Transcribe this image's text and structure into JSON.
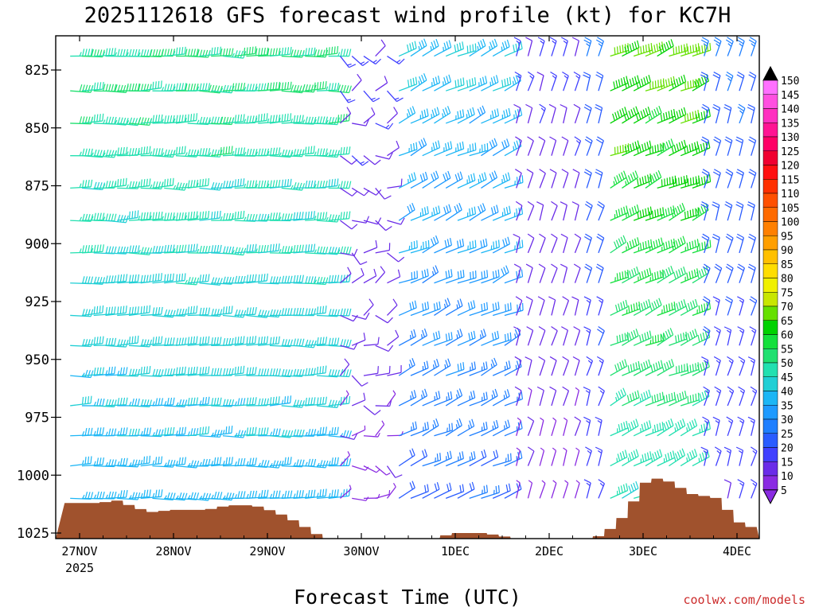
{
  "title": "2025112618 GFS forecast wind profile (kt) for KC7H",
  "xlabel": "Forecast Time (UTC)",
  "credit": "coolwx.com/models",
  "colors": {
    "terrain": "#a0522d",
    "terrain_edge": "#000000"
  },
  "chart_data": {
    "type": "wind_barb_profile",
    "xlabel": "Forecast Time (UTC)",
    "ylabel": "",
    "x_ticks": [
      {
        "label": "27NOV",
        "sub": "2025",
        "day": 0.0
      },
      {
        "label": "28NOV",
        "sub": "",
        "day": 1.0
      },
      {
        "label": "29NOV",
        "sub": "",
        "day": 2.0
      },
      {
        "label": "30NOV",
        "sub": "",
        "day": 3.0
      },
      {
        "label": "1DEC",
        "sub": "",
        "day": 4.0
      },
      {
        "label": "2DEC",
        "sub": "",
        "day": 5.0
      },
      {
        "label": "3DEC",
        "sub": "",
        "day": 6.0
      },
      {
        "label": "4DEC",
        "sub": "",
        "day": 7.0
      }
    ],
    "xlim_days": [
      -0.1,
      7.25
    ],
    "y_ticks": [
      825,
      850,
      875,
      900,
      925,
      950,
      975,
      1000,
      1025
    ],
    "ylim_hpa": [
      1035,
      810
    ],
    "y_reverse": true,
    "levels_hpa": [
      819,
      834,
      848,
      862,
      876,
      890,
      904,
      917,
      931,
      944,
      957,
      970,
      983,
      996,
      1010
    ],
    "forecast_step_hours": 3,
    "colorbar": {
      "ticks": [
        5,
        10,
        15,
        20,
        25,
        30,
        35,
        40,
        45,
        50,
        55,
        60,
        65,
        70,
        75,
        80,
        85,
        90,
        95,
        100,
        105,
        110,
        115,
        120,
        125,
        130,
        135,
        140,
        145,
        150
      ],
      "colors": [
        "#8a2be2",
        "#6a2ce8",
        "#4040ff",
        "#2a5cff",
        "#1f7fff",
        "#1e9aff",
        "#1cb6f5",
        "#20cfd5",
        "#22e0b0",
        "#20e070",
        "#14e03c",
        "#00d200",
        "#66e000",
        "#c8e600",
        "#f0f000",
        "#ffdd00",
        "#ffc000",
        "#ff9f00",
        "#ff8000",
        "#ff6a00",
        "#ff5000",
        "#ff3000",
        "#ff1010",
        "#f00030",
        "#ff0066",
        "#ff1493",
        "#ff30c0",
        "#ff50e0",
        "#ff70ff"
      ],
      "arrow_top": "#000000",
      "arrow_bottom": "#8a2be2"
    },
    "surface_pressure_hpa": [
      {
        "day": -0.1,
        "p": 1012
      },
      {
        "day": 0.2,
        "p": 1012
      },
      {
        "day": 0.4,
        "p": 1011
      },
      {
        "day": 0.6,
        "p": 1014
      },
      {
        "day": 0.75,
        "p": 1016
      },
      {
        "day": 1.0,
        "p": 1015
      },
      {
        "day": 1.35,
        "p": 1015
      },
      {
        "day": 1.6,
        "p": 1013
      },
      {
        "day": 1.85,
        "p": 1013
      },
      {
        "day": 2.1,
        "p": 1016
      },
      {
        "day": 2.3,
        "p": 1020
      },
      {
        "day": 2.55,
        "p": 1026
      },
      {
        "day": 2.8,
        "p": 1030
      },
      {
        "day": 3.0,
        "p": 1032
      },
      {
        "day": 3.25,
        "p": 1032
      },
      {
        "day": 3.55,
        "p": 1030
      },
      {
        "day": 3.8,
        "p": 1027
      },
      {
        "day": 4.0,
        "p": 1025
      },
      {
        "day": 4.3,
        "p": 1025
      },
      {
        "day": 4.6,
        "p": 1027
      },
      {
        "day": 4.9,
        "p": 1029
      },
      {
        "day": 5.2,
        "p": 1029
      },
      {
        "day": 5.5,
        "p": 1027
      },
      {
        "day": 5.7,
        "p": 1022
      },
      {
        "day": 5.85,
        "p": 1015
      },
      {
        "day": 6.0,
        "p": 1004
      },
      {
        "day": 6.1,
        "p": 1001
      },
      {
        "day": 6.3,
        "p": 1003
      },
      {
        "day": 6.5,
        "p": 1008
      },
      {
        "day": 6.8,
        "p": 1010
      },
      {
        "day": 7.0,
        "p": 1020
      },
      {
        "day": 7.25,
        "p": 1024
      }
    ],
    "wind_regimes": [
      {
        "from_day": -0.1,
        "to_day": 2.75,
        "speed_kt_range": [
          30,
          50
        ],
        "direction": "westerly"
      },
      {
        "from_day": 2.75,
        "to_day": 3.3,
        "speed_kt_range": [
          5,
          15
        ],
        "direction": "light/variable"
      },
      {
        "from_day": 3.3,
        "to_day": 4.6,
        "speed_kt_range": [
          15,
          40
        ],
        "direction": "northwesterly"
      },
      {
        "from_day": 4.6,
        "to_day": 5.4,
        "speed_kt_range": [
          5,
          15
        ],
        "direction": "northerly"
      },
      {
        "from_day": 5.6,
        "to_day": 6.6,
        "speed_kt_range": [
          35,
          65
        ],
        "direction": "northwesterly"
      },
      {
        "from_day": 6.6,
        "to_day": 7.25,
        "speed_kt_range": [
          10,
          25
        ],
        "direction": "northerly"
      }
    ]
  }
}
